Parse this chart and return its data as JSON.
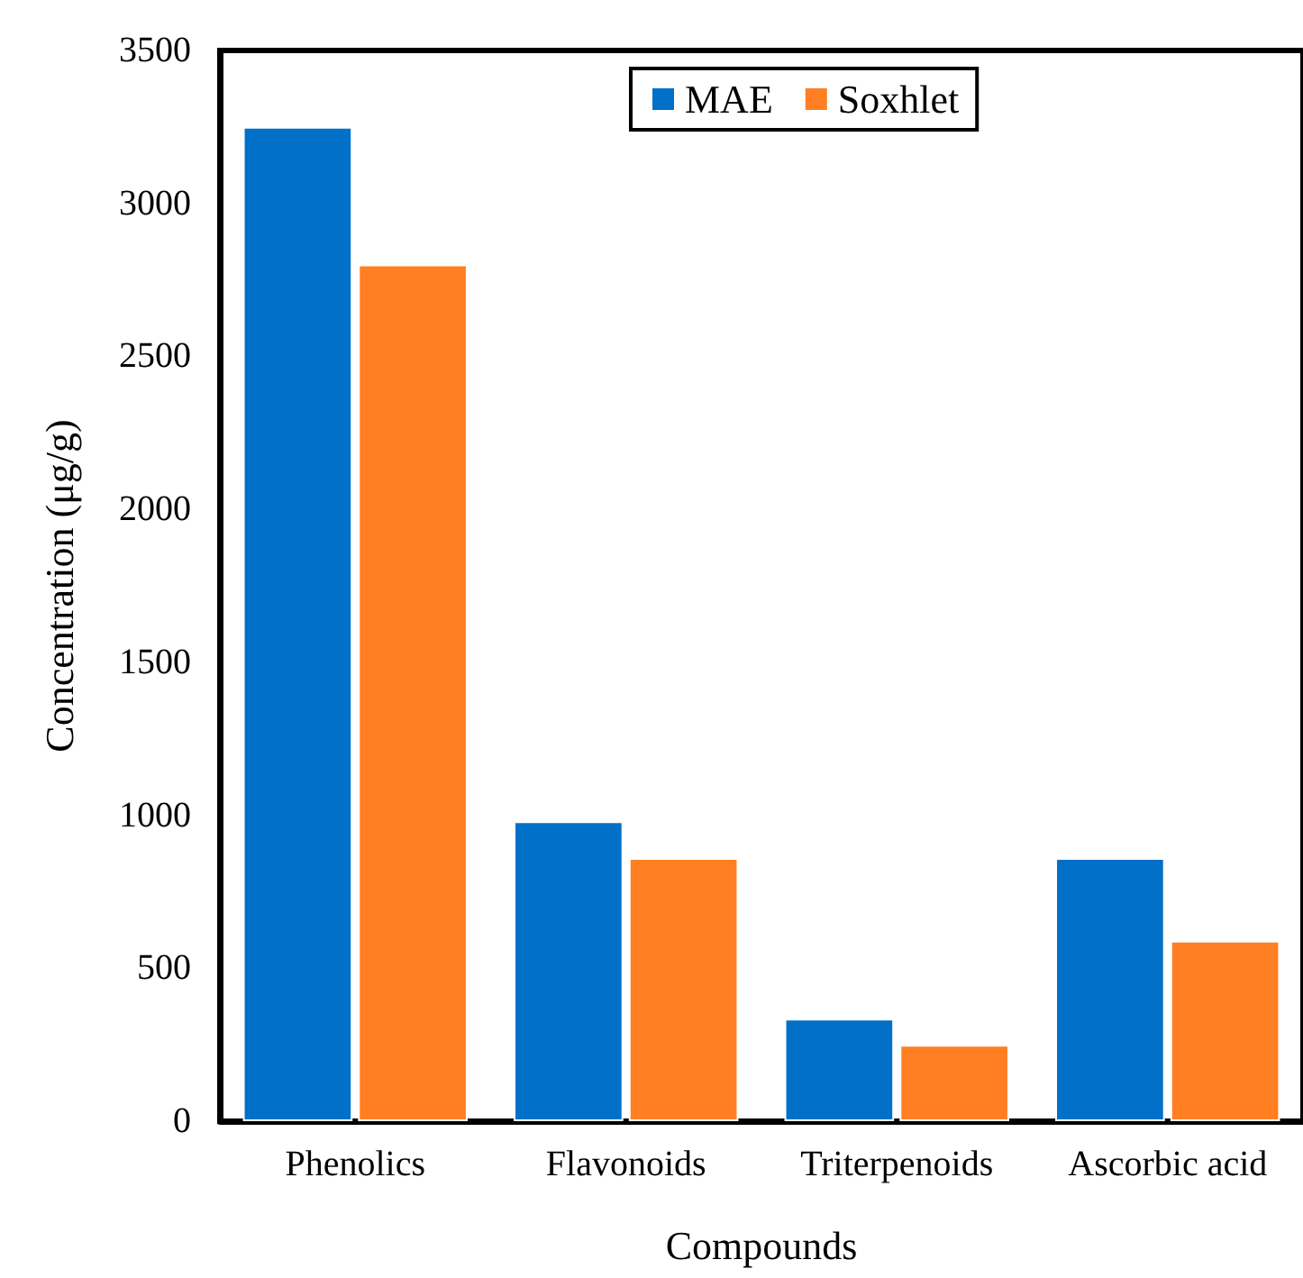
{
  "chart_data": {
    "type": "bar",
    "xlabel": "Compounds",
    "ylabel": "Concentration (μg/g)",
    "categories": [
      "Phenolics",
      "Flavonoids",
      "Triterpenoids",
      "Ascorbic acid"
    ],
    "series": [
      {
        "name": "MAE",
        "color": "#0070c8",
        "values": [
          3250,
          980,
          335,
          860
        ]
      },
      {
        "name": "Soxhlet",
        "color": "#ff7f22",
        "values": [
          2800,
          860,
          250,
          590
        ]
      }
    ],
    "ylim": [
      0,
      3500
    ],
    "yticks": [
      0,
      500,
      1000,
      1500,
      2000,
      2500,
      3000,
      3500
    ],
    "grid": false,
    "legend": "top"
  }
}
